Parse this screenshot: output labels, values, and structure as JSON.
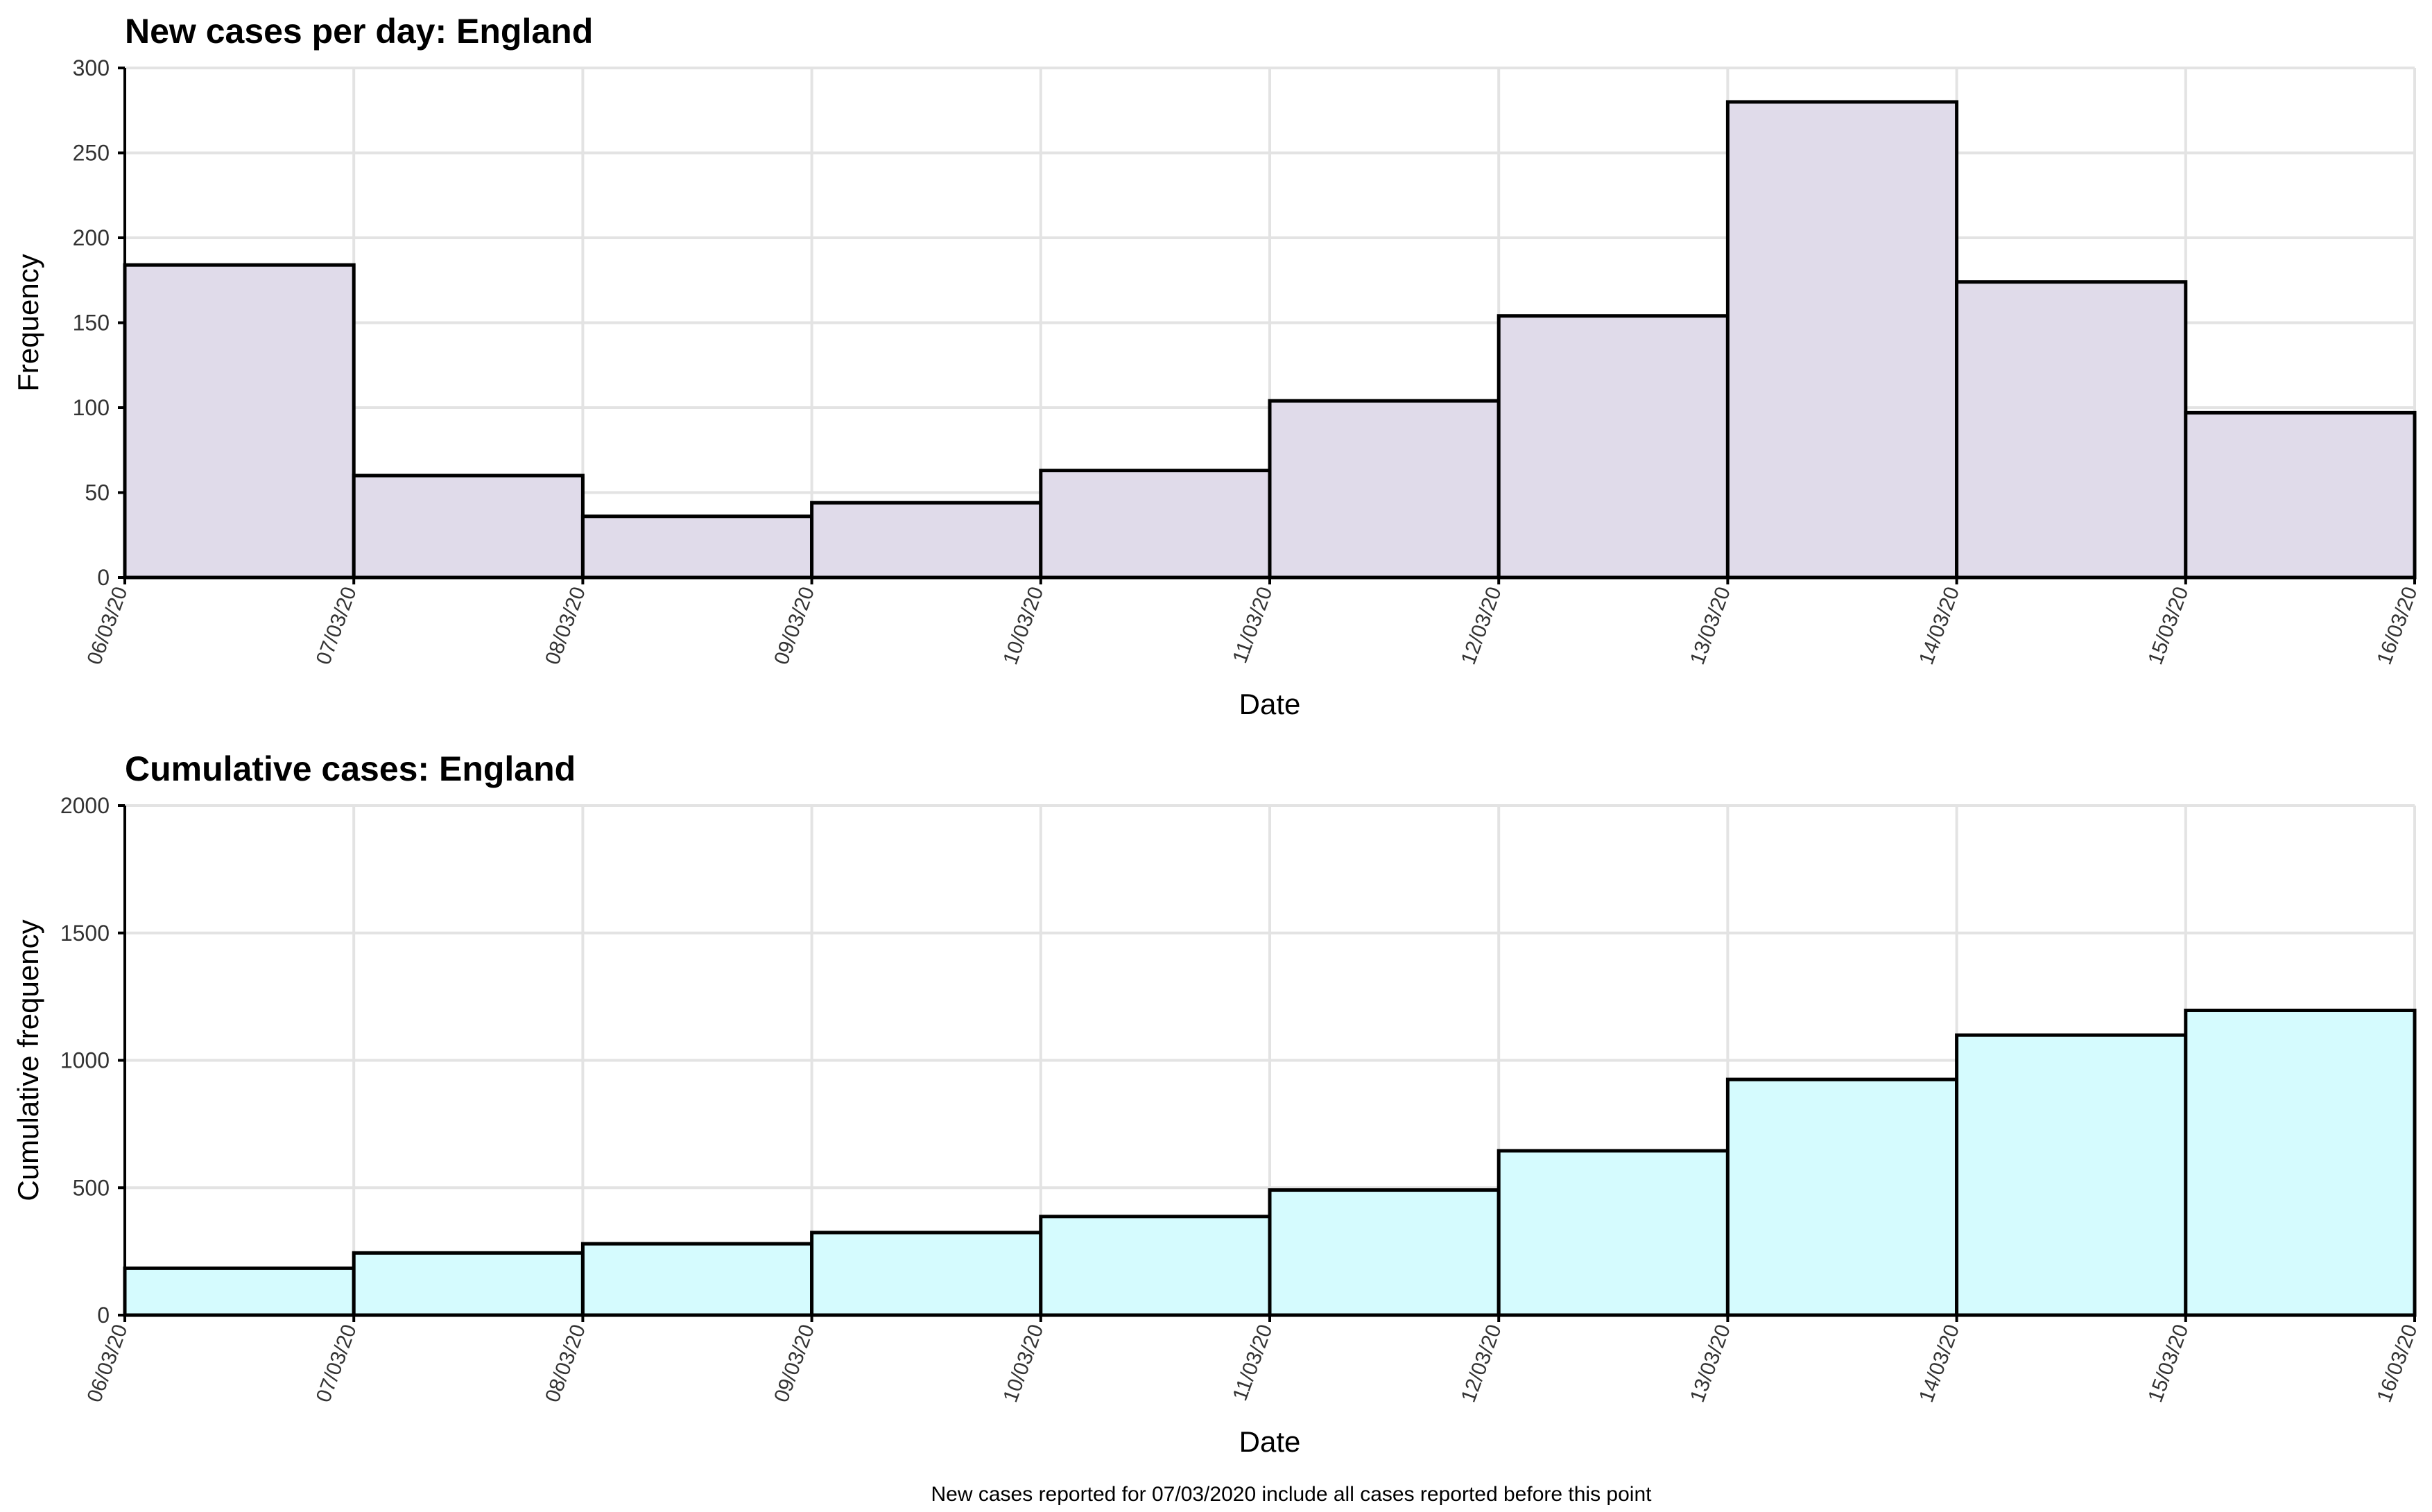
{
  "caption": "New cases reported for 07/03/2020 include all cases reported before this point",
  "chart_data": [
    {
      "type": "bar",
      "title": "New cases per day: England",
      "xlabel": "Date",
      "ylabel": "Frequency",
      "x_ticks": [
        "06/03/20",
        "07/03/20",
        "08/03/20",
        "09/03/20",
        "10/03/20",
        "11/03/20",
        "12/03/20",
        "13/03/20",
        "14/03/20",
        "15/03/20",
        "16/03/20"
      ],
      "categories": [
        "06/03/20",
        "07/03/20",
        "08/03/20",
        "09/03/20",
        "10/03/20",
        "11/03/20",
        "12/03/20",
        "13/03/20",
        "14/03/20",
        "15/03/20"
      ],
      "values": [
        184,
        60,
        36,
        44,
        63,
        104,
        154,
        280,
        174,
        97
      ],
      "ylim": [
        0,
        300
      ],
      "y_ticks": [
        0,
        50,
        100,
        150,
        200,
        250,
        300
      ],
      "grid": true,
      "fill_color": "#e0dbea",
      "edge_color": "#000000"
    },
    {
      "type": "bar",
      "title": "Cumulative cases: England",
      "xlabel": "Date",
      "ylabel": "Cumulative frequency",
      "x_ticks": [
        "06/03/20",
        "07/03/20",
        "08/03/20",
        "09/03/20",
        "10/03/20",
        "11/03/20",
        "12/03/20",
        "13/03/20",
        "14/03/20",
        "15/03/20",
        "16/03/20"
      ],
      "categories": [
        "06/03/20",
        "07/03/20",
        "08/03/20",
        "09/03/20",
        "10/03/20",
        "11/03/20",
        "12/03/20",
        "13/03/20",
        "14/03/20",
        "15/03/20"
      ],
      "values": [
        184,
        244,
        280,
        324,
        387,
        491,
        645,
        925,
        1099,
        1196
      ],
      "ylim": [
        0,
        2000
      ],
      "y_ticks": [
        0,
        500,
        1000,
        1500,
        2000
      ],
      "grid": true,
      "fill_color": "#d5fbfe",
      "edge_color": "#000000"
    }
  ]
}
